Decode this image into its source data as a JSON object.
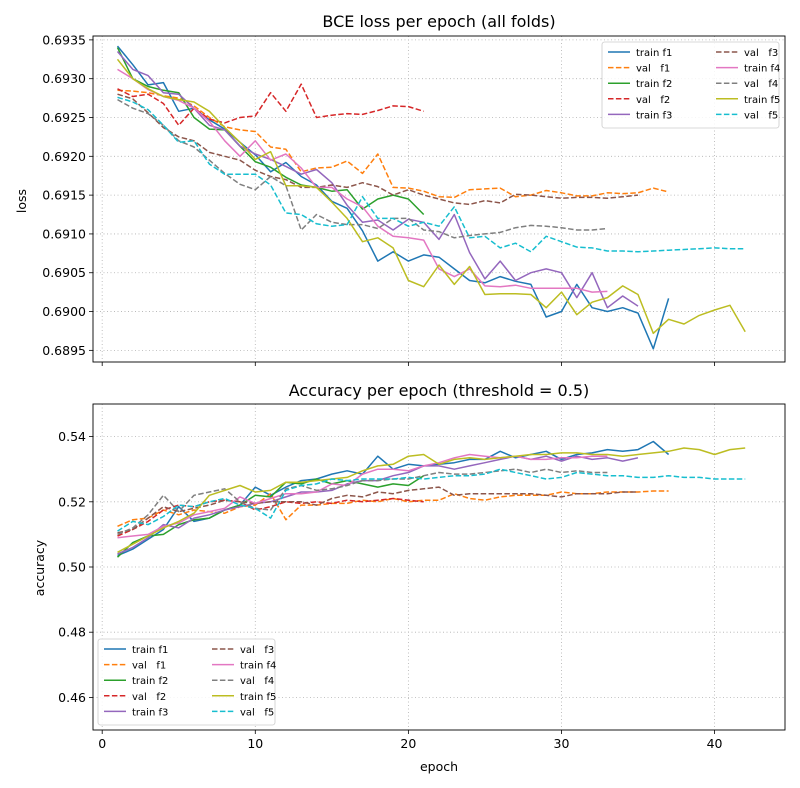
{
  "figure": {
    "xlabel": "epoch"
  },
  "chart_data": [
    {
      "type": "line",
      "title": "BCE loss per epoch (all folds)",
      "xlabel": "",
      "ylabel": "loss",
      "xlim": [
        -0.6,
        44.6
      ],
      "ylim": [
        0.68935,
        0.69355
      ],
      "xticks": [
        0,
        10,
        20,
        30,
        40
      ],
      "yticks": [
        0.6895,
        0.69,
        0.6905,
        0.691,
        0.6915,
        0.692,
        0.6925,
        0.693,
        0.6935
      ],
      "ytick_labels": [
        "0.6895",
        "0.6900",
        "0.6905",
        "0.6910",
        "0.6915",
        "0.6920",
        "0.6925",
        "0.6930",
        "0.6935"
      ],
      "grid": true,
      "legend": {
        "placement": "top-right",
        "columns": 2
      },
      "series": [
        {
          "name": "train f1",
          "color": "#1f77b4",
          "dash": "solid",
          "x_start": 1,
          "values": [
            0.69342,
            0.69318,
            0.69292,
            0.69295,
            0.69258,
            0.69262,
            0.69247,
            0.69235,
            0.69218,
            0.69202,
            0.6918,
            0.69192,
            0.69174,
            0.69163,
            0.69142,
            0.69133,
            0.69104,
            0.69065,
            0.69077,
            0.69065,
            0.69073,
            0.6907,
            0.69055,
            0.6904,
            0.69037,
            0.69045,
            0.69039,
            0.69035,
            0.68993,
            0.69,
            0.69035,
            0.69005,
            0.69,
            0.69005,
            0.68998,
            0.68952,
            0.69017
          ]
        },
        {
          "name": "val   f1",
          "color": "#ff7f0e",
          "dash": "dashed",
          "x_start": 1,
          "values": [
            0.69285,
            0.69284,
            0.69282,
            0.69278,
            0.69275,
            0.69265,
            0.6925,
            0.69238,
            0.69234,
            0.69232,
            0.69212,
            0.69209,
            0.6918,
            0.69185,
            0.69186,
            0.69194,
            0.69178,
            0.69203,
            0.6916,
            0.69159,
            0.69155,
            0.69148,
            0.69147,
            0.69157,
            0.69158,
            0.69159,
            0.69148,
            0.6915,
            0.69156,
            0.69153,
            0.69149,
            0.69149,
            0.69153,
            0.69152,
            0.69153,
            0.69159,
            0.69154
          ]
        },
        {
          "name": "train f2",
          "color": "#2ca02c",
          "dash": "solid",
          "x_start": 1,
          "values": [
            0.6934,
            0.693,
            0.6929,
            0.69285,
            0.69282,
            0.6925,
            0.69235,
            0.69234,
            0.69213,
            0.69193,
            0.69186,
            0.69173,
            0.69163,
            0.6916,
            0.69155,
            0.69157,
            0.69132,
            0.69145,
            0.6915,
            0.69145,
            0.69125
          ]
        },
        {
          "name": "val   f2",
          "color": "#d62728",
          "dash": "dashed",
          "x_start": 1,
          "values": [
            0.69287,
            0.69277,
            0.6928,
            0.69268,
            0.6924,
            0.69262,
            0.69248,
            0.69243,
            0.6925,
            0.69252,
            0.69282,
            0.69258,
            0.69293,
            0.6925,
            0.69253,
            0.69255,
            0.69254,
            0.69259,
            0.69265,
            0.69264,
            0.69258
          ]
        },
        {
          "name": "train f3",
          "color": "#9467bd",
          "dash": "solid",
          "x_start": 1,
          "values": [
            0.69335,
            0.69312,
            0.69304,
            0.69282,
            0.6928,
            0.69262,
            0.6924,
            0.69234,
            0.69213,
            0.69203,
            0.69196,
            0.69187,
            0.69177,
            0.69183,
            0.69166,
            0.69137,
            0.69115,
            0.69118,
            0.69105,
            0.69119,
            0.69115,
            0.69093,
            0.69125,
            0.69076,
            0.69042,
            0.69065,
            0.6904,
            0.6905,
            0.69055,
            0.6905,
            0.69018,
            0.6905,
            0.69005,
            0.6902,
            0.69007
          ]
        },
        {
          "name": "val   f3",
          "color": "#8c564b",
          "dash": "dashed",
          "x_start": 1,
          "values": [
            0.6928,
            0.69274,
            0.69256,
            0.69237,
            0.69225,
            0.6922,
            0.69205,
            0.692,
            0.69195,
            0.69182,
            0.69174,
            0.6917,
            0.6916,
            0.6916,
            0.69163,
            0.6916,
            0.69166,
            0.69161,
            0.6915,
            0.69157,
            0.6915,
            0.69145,
            0.6914,
            0.69138,
            0.69143,
            0.6914,
            0.69151,
            0.6915,
            0.69148,
            0.69146,
            0.69147,
            0.69147,
            0.69146,
            0.69148,
            0.6915
          ]
        },
        {
          "name": "train f4",
          "color": "#e377c2",
          "dash": "solid",
          "x_start": 1,
          "values": [
            0.69312,
            0.693,
            0.69286,
            0.69277,
            0.69272,
            0.69262,
            0.69245,
            0.6922,
            0.692,
            0.6922,
            0.69195,
            0.69203,
            0.69185,
            0.6916,
            0.6916,
            0.69145,
            0.69135,
            0.6911,
            0.69097,
            0.69095,
            0.69092,
            0.69055,
            0.69045,
            0.69055,
            0.69033,
            0.69032,
            0.69034,
            0.6903,
            0.6903,
            0.6903,
            0.6903,
            0.69025,
            0.69026
          ]
        },
        {
          "name": "val   f4",
          "color": "#7f7f7f",
          "dash": "dashed",
          "x_start": 1,
          "values": [
            0.69273,
            0.69262,
            0.69255,
            0.6924,
            0.6922,
            0.69212,
            0.69195,
            0.69178,
            0.69164,
            0.69157,
            0.69174,
            0.69162,
            0.69105,
            0.69125,
            0.69115,
            0.69112,
            0.69112,
            0.69107,
            0.6912,
            0.6912,
            0.69105,
            0.69103,
            0.69095,
            0.69098,
            0.691,
            0.69102,
            0.69108,
            0.69111,
            0.6911,
            0.69108,
            0.69105,
            0.69105,
            0.69107
          ]
        },
        {
          "name": "train f5",
          "color": "#bcbd22",
          "dash": "solid",
          "x_start": 1,
          "values": [
            0.69325,
            0.693,
            0.69287,
            0.69277,
            0.69273,
            0.6927,
            0.69258,
            0.69237,
            0.69218,
            0.69196,
            0.69206,
            0.69162,
            0.69162,
            0.6916,
            0.69141,
            0.6912,
            0.6909,
            0.69095,
            0.69082,
            0.6904,
            0.69032,
            0.6906,
            0.69035,
            0.69058,
            0.69022,
            0.69023,
            0.69023,
            0.69022,
            0.69005,
            0.69025,
            0.68996,
            0.69012,
            0.69018,
            0.69033,
            0.69022,
            0.68972,
            0.6899,
            0.68984,
            0.68995,
            0.69002,
            0.69008,
            0.68974
          ]
        },
        {
          "name": "val   f5",
          "color": "#17becf",
          "dash": "dashed",
          "x_start": 1,
          "values": [
            0.69276,
            0.6927,
            0.6926,
            0.6924,
            0.69218,
            0.6922,
            0.6919,
            0.69177,
            0.69177,
            0.69177,
            0.69163,
            0.69127,
            0.69125,
            0.69113,
            0.6911,
            0.69112,
            0.69148,
            0.6912,
            0.6912,
            0.6911,
            0.69115,
            0.6911,
            0.69135,
            0.69095,
            0.69097,
            0.69082,
            0.69088,
            0.69077,
            0.69097,
            0.6909,
            0.69083,
            0.69082,
            0.69078,
            0.69078,
            0.69077,
            0.69078,
            0.69079,
            0.6908,
            0.69081,
            0.69082,
            0.69081,
            0.69081
          ]
        }
      ]
    },
    {
      "type": "line",
      "title": "Accuracy per epoch (threshold = 0.5)",
      "xlabel": "epoch",
      "ylabel": "accuracy",
      "xlim": [
        -0.6,
        44.6
      ],
      "ylim": [
        0.45,
        0.55
      ],
      "xticks": [
        0,
        10,
        20,
        30,
        40
      ],
      "yticks": [
        0.46,
        0.48,
        0.5,
        0.52,
        0.54
      ],
      "ytick_labels": [
        "0.46",
        "0.48",
        "0.50",
        "0.52",
        "0.54"
      ],
      "grid": true,
      "legend": {
        "placement": "bottom-left",
        "columns": 2
      },
      "series": [
        {
          "name": "train f1",
          "color": "#1f77b4",
          "dash": "solid",
          "x_start": 1,
          "values": [
            0.5035,
            0.5055,
            0.5085,
            0.5115,
            0.5185,
            0.514,
            0.515,
            0.5175,
            0.519,
            0.5245,
            0.522,
            0.5245,
            0.5265,
            0.527,
            0.5285,
            0.5295,
            0.5285,
            0.534,
            0.53,
            0.5315,
            0.531,
            0.5315,
            0.532,
            0.533,
            0.533,
            0.5355,
            0.5335,
            0.5345,
            0.5355,
            0.533,
            0.5345,
            0.535,
            0.536,
            0.5355,
            0.536,
            0.5385,
            0.5345
          ]
        },
        {
          "name": "val   f1",
          "color": "#ff7f0e",
          "dash": "dashed",
          "x_start": 1,
          "values": [
            0.5125,
            0.5145,
            0.515,
            0.5175,
            0.516,
            0.5175,
            0.517,
            0.5165,
            0.5185,
            0.519,
            0.5225,
            0.5145,
            0.519,
            0.519,
            0.5195,
            0.5195,
            0.5205,
            0.52,
            0.521,
            0.52,
            0.5205,
            0.5205,
            0.5225,
            0.521,
            0.5205,
            0.5215,
            0.522,
            0.522,
            0.522,
            0.523,
            0.5225,
            0.5225,
            0.523,
            0.523,
            0.523,
            0.5233,
            0.5233
          ]
        },
        {
          "name": "train f2",
          "color": "#2ca02c",
          "dash": "solid",
          "x_start": 1,
          "values": [
            0.503,
            0.5075,
            0.5095,
            0.51,
            0.513,
            0.5145,
            0.515,
            0.5175,
            0.519,
            0.522,
            0.5215,
            0.526,
            0.5255,
            0.527,
            0.5255,
            0.5265,
            0.5255,
            0.5245,
            0.5255,
            0.525,
            0.528
          ]
        },
        {
          "name": "val   f2",
          "color": "#d62728",
          "dash": "dashed",
          "x_start": 1,
          "values": [
            0.5095,
            0.5115,
            0.514,
            0.5175,
            0.519,
            0.5185,
            0.52,
            0.5205,
            0.52,
            0.5175,
            0.5185,
            0.52,
            0.5195,
            0.52,
            0.5195,
            0.5205,
            0.52,
            0.5205,
            0.521,
            0.5205,
            0.52
          ]
        },
        {
          "name": "train f3",
          "color": "#9467bd",
          "dash": "solid",
          "x_start": 1,
          "values": [
            0.504,
            0.506,
            0.509,
            0.513,
            0.512,
            0.515,
            0.516,
            0.5175,
            0.5185,
            0.5195,
            0.52,
            0.5215,
            0.523,
            0.523,
            0.5235,
            0.5255,
            0.5265,
            0.5265,
            0.528,
            0.529,
            0.531,
            0.531,
            0.53,
            0.531,
            0.532,
            0.533,
            0.534,
            0.533,
            0.534,
            0.5325,
            0.534,
            0.533,
            0.5335,
            0.5325,
            0.5335
          ]
        },
        {
          "name": "val   f3",
          "color": "#8c564b",
          "dash": "dashed",
          "x_start": 1,
          "values": [
            0.5105,
            0.5115,
            0.515,
            0.5185,
            0.517,
            0.518,
            0.519,
            0.5205,
            0.52,
            0.5195,
            0.52,
            0.52,
            0.52,
            0.519,
            0.521,
            0.522,
            0.5215,
            0.523,
            0.5225,
            0.5235,
            0.524,
            0.5245,
            0.522,
            0.5225,
            0.5225,
            0.5225,
            0.5225,
            0.5225,
            0.522,
            0.5215,
            0.5225,
            0.5225,
            0.5225,
            0.523,
            0.523
          ]
        },
        {
          "name": "train f4",
          "color": "#e377c2",
          "dash": "solid",
          "x_start": 1,
          "values": [
            0.509,
            0.5095,
            0.51,
            0.5125,
            0.5135,
            0.516,
            0.517,
            0.518,
            0.5215,
            0.5195,
            0.521,
            0.5225,
            0.5225,
            0.523,
            0.5255,
            0.525,
            0.5285,
            0.53,
            0.53,
            0.5295,
            0.531,
            0.532,
            0.5335,
            0.5345,
            0.534,
            0.5335,
            0.534,
            0.533,
            0.533,
            0.5335,
            0.5335,
            0.534,
            0.534
          ]
        },
        {
          "name": "val   f4",
          "color": "#7f7f7f",
          "dash": "dashed",
          "x_start": 1,
          "values": [
            0.51,
            0.512,
            0.516,
            0.522,
            0.517,
            0.522,
            0.523,
            0.524,
            0.52,
            0.518,
            0.5175,
            0.524,
            0.525,
            0.5235,
            0.524,
            0.525,
            0.5265,
            0.5265,
            0.527,
            0.527,
            0.528,
            0.529,
            0.5285,
            0.5285,
            0.529,
            0.5295,
            0.53,
            0.529,
            0.53,
            0.529,
            0.5295,
            0.529,
            0.529
          ]
        },
        {
          "name": "train f5",
          "color": "#bcbd22",
          "dash": "solid",
          "x_start": 1,
          "values": [
            0.5045,
            0.507,
            0.5095,
            0.512,
            0.514,
            0.5165,
            0.522,
            0.5235,
            0.525,
            0.523,
            0.5235,
            0.526,
            0.526,
            0.5265,
            0.527,
            0.5275,
            0.5295,
            0.531,
            0.5315,
            0.534,
            0.5345,
            0.5315,
            0.533,
            0.5335,
            0.533,
            0.5335,
            0.534,
            0.5345,
            0.5345,
            0.535,
            0.535,
            0.5345,
            0.5345,
            0.534,
            0.5345,
            0.535,
            0.5355,
            0.5365,
            0.536,
            0.5345,
            0.536,
            0.5365
          ]
        },
        {
          "name": "val   f5",
          "color": "#17becf",
          "dash": "dashed",
          "x_start": 1,
          "values": [
            0.511,
            0.514,
            0.513,
            0.5155,
            0.519,
            0.5185,
            0.52,
            0.521,
            0.519,
            0.518,
            0.515,
            0.5235,
            0.525,
            0.5255,
            0.527,
            0.5265,
            0.527,
            0.527,
            0.527,
            0.5275,
            0.527,
            0.5275,
            0.528,
            0.528,
            0.5285,
            0.53,
            0.529,
            0.528,
            0.527,
            0.5275,
            0.529,
            0.5285,
            0.528,
            0.528,
            0.5275,
            0.5275,
            0.528,
            0.5275,
            0.5275,
            0.527,
            0.527,
            0.527
          ]
        }
      ]
    }
  ]
}
